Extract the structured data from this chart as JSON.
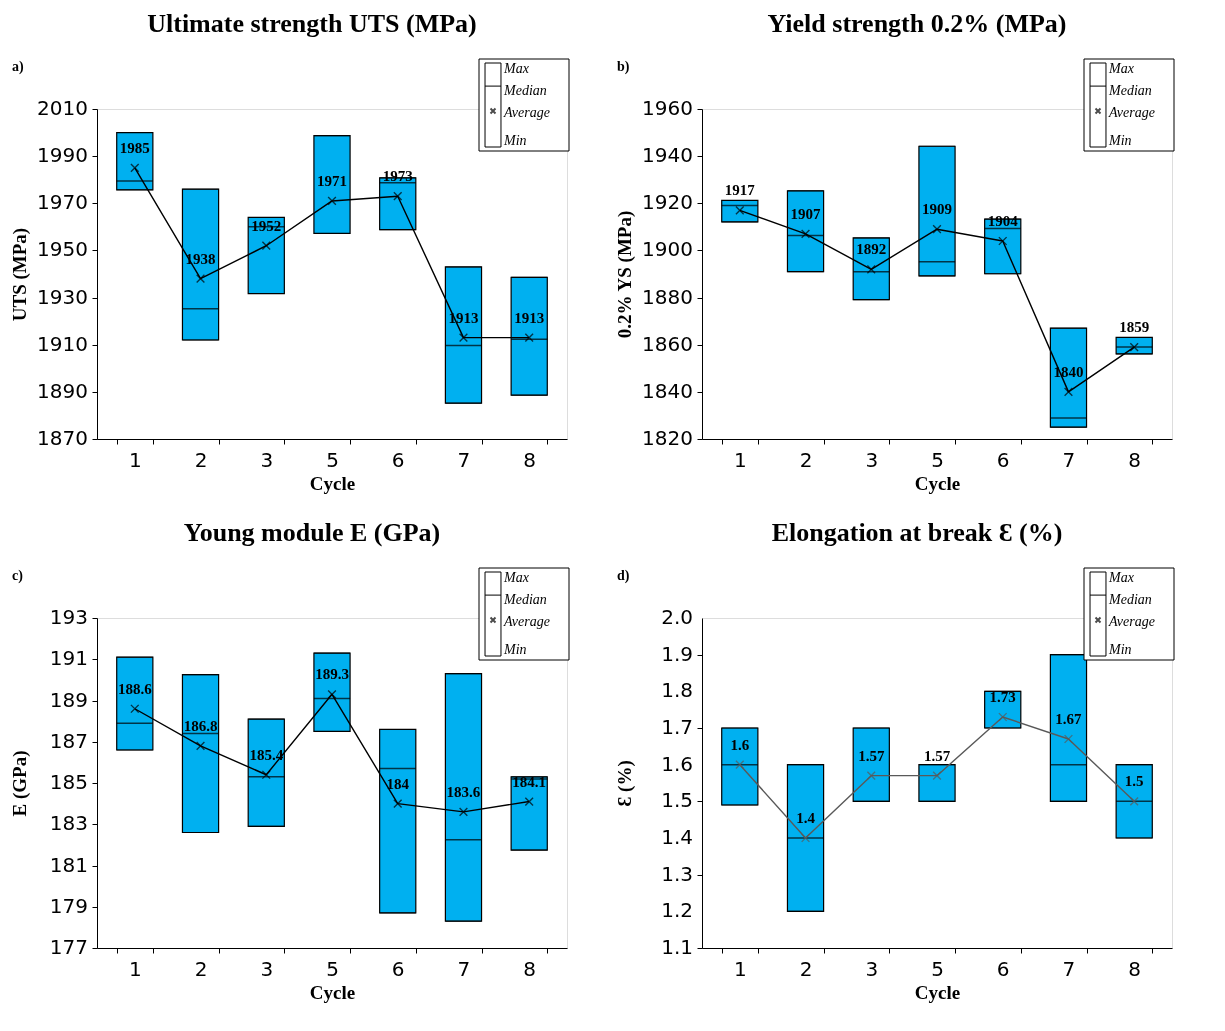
{
  "chart_data": [
    {
      "type": "box",
      "title": "Ultimate strength UTS (MPa)",
      "xlabel": "Cycle",
      "ylabel": "UTS (MPa)",
      "categories": [
        "1",
        "2",
        "3",
        "5",
        "6",
        "7",
        "8"
      ],
      "color": "#00b0f0",
      "annotations": [
        "a)",
        "Max",
        "Median",
        "Average",
        "Min"
      ],
      "boxes": [
        {
          "low": 1975.7,
          "q1": 1975.7,
          "median": 1979.5,
          "q3": 2000,
          "high": 2000
        },
        {
          "low": 1912,
          "q1": 1912,
          "median": 1925.3,
          "q3": 1976,
          "high": 1976
        },
        {
          "low": 1931.7,
          "q1": 1931.7,
          "median": 1960,
          "q3": 1964,
          "high": 1964
        },
        {
          "low": 1957.2,
          "q1": 1957.2,
          "median": null,
          "q3": 1998.7,
          "high": 1998.7
        },
        {
          "low": 1958.8,
          "q1": 1958.8,
          "median": 1978.7,
          "q3": 1980.8,
          "high": 1980.8
        },
        {
          "low": 1885.2,
          "q1": 1885.2,
          "median": 1909.7,
          "q3": 1943,
          "high": 1943
        },
        {
          "low": 1888.6,
          "q1": 1888.6,
          "median": 1912.3,
          "q3": 1938.6,
          "high": 1938.6
        }
      ],
      "series": [
        {
          "type": "line",
          "color": "#000000",
          "values": [
            1985,
            1938,
            1952,
            1971,
            1973,
            1913,
            1913
          ]
        }
      ],
      "marker": "cross",
      "data_labels": true,
      "ylim": [
        1870,
        2010
      ],
      "yticks": [
        1870,
        1890,
        1910,
        1930,
        1950,
        1970,
        1990,
        2010
      ],
      "grid": false
    },
    {
      "type": "box",
      "title": "Yield strength 0.2% (MPa)",
      "xlabel": "Cycle",
      "ylabel": "0.2% YS (MPa)",
      "categories": [
        "1",
        "2",
        "3",
        "5",
        "6",
        "7",
        "8"
      ],
      "color": "#00b0f0",
      "annotations": [
        "b)",
        "Max",
        "Median",
        "Average",
        "Min"
      ],
      "boxes": [
        {
          "low": 1912.1,
          "q1": 1912.1,
          "median": 1919.1,
          "q3": 1921.2,
          "high": 1921.2
        },
        {
          "low": 1891,
          "q1": 1891,
          "median": 1906.3,
          "q3": 1925.3,
          "high": 1925.3
        },
        {
          "low": 1879.1,
          "q1": 1879.1,
          "median": 1891,
          "q3": 1905.3,
          "high": 1905.3
        },
        {
          "low": 1889.2,
          "q1": 1889.2,
          "median": 1895.2,
          "q3": 1944.2,
          "high": 1944.2
        },
        {
          "low": 1890.1,
          "q1": 1890.1,
          "median": 1909.3,
          "q3": 1913.3,
          "high": 1913.3
        },
        {
          "low": 1825,
          "q1": 1825,
          "median": 1828.9,
          "q3": 1867,
          "high": 1867
        },
        {
          "low": 1856.1,
          "q1": 1856.1,
          "median": 1859,
          "q3": 1863.1,
          "high": 1863.1
        }
      ],
      "series": [
        {
          "type": "line",
          "color": "#000000",
          "values": [
            1917,
            1907,
            1892,
            1909,
            1904,
            1840,
            1859
          ]
        }
      ],
      "marker": "cross",
      "data_labels": true,
      "ylim": [
        1820,
        1960
      ],
      "yticks": [
        1820,
        1840,
        1860,
        1880,
        1900,
        1920,
        1940,
        1960
      ],
      "grid": false
    },
    {
      "type": "box",
      "title": "Young module E (GPa)",
      "xlabel": "Cycle",
      "ylabel": "E (GPa)",
      "categories": [
        "1",
        "2",
        "3",
        "5",
        "6",
        "7",
        "8"
      ],
      "color": "#00b0f0",
      "annotations": [
        "c)",
        "Max",
        "Median",
        "Average",
        "Min"
      ],
      "boxes": [
        {
          "low": 186.6,
          "q1": 186.6,
          "median": 187.9,
          "q3": 191.1,
          "high": 191.1
        },
        {
          "low": 182.6,
          "q1": 182.6,
          "median": 187.4,
          "q3": 190.25,
          "high": 190.25
        },
        {
          "low": 182.9,
          "q1": 182.9,
          "median": 185.3,
          "q3": 188.1,
          "high": 188.1
        },
        {
          "low": 187.5,
          "q1": 187.5,
          "median": 189.1,
          "q3": 191.3,
          "high": 191.3
        },
        {
          "low": 178.7,
          "q1": 178.7,
          "median": 185.7,
          "q3": 187.6,
          "high": 187.6
        },
        {
          "low": 178.3,
          "q1": 178.3,
          "median": 182.25,
          "q3": 190.3,
          "high": 190.3
        },
        {
          "low": 181.75,
          "q1": 181.75,
          "median": 185.2,
          "q3": 185.3,
          "high": 185.3
        }
      ],
      "series": [
        {
          "type": "line",
          "color": "#000000",
          "values": [
            188.6,
            186.8,
            185.4,
            189.3,
            184,
            183.6,
            184.1
          ]
        }
      ],
      "marker": "cross",
      "data_labels": true,
      "ylim": [
        177,
        193
      ],
      "yticks": [
        177,
        179,
        181,
        183,
        185,
        187,
        189,
        191,
        193
      ],
      "grid": false
    },
    {
      "type": "box",
      "title": "Elongation at break Ɛ (%)",
      "xlabel": "Cycle",
      "ylabel": "Ɛ (%)",
      "categories": [
        "1",
        "2",
        "3",
        "5",
        "6",
        "7",
        "8"
      ],
      "color": "#00b0f0",
      "annotations": [
        "d)",
        "Max",
        "Median",
        "Average",
        "Min"
      ],
      "boxes": [
        {
          "low": 1.49,
          "q1": 1.49,
          "median": 1.6,
          "q3": 1.7,
          "high": 1.7
        },
        {
          "low": 1.2,
          "q1": 1.2,
          "median": 1.4,
          "q3": 1.6,
          "high": 1.6
        },
        {
          "low": 1.5,
          "q1": 1.5,
          "median": null,
          "q3": 1.7,
          "high": 1.7
        },
        {
          "low": 1.5,
          "q1": 1.5,
          "median": null,
          "q3": 1.6,
          "high": 1.6
        },
        {
          "low": 1.7,
          "q1": 1.7,
          "median": null,
          "q3": 1.8,
          "high": 1.8
        },
        {
          "low": 1.5,
          "q1": 1.5,
          "median": 1.6,
          "q3": 1.9,
          "high": 1.9
        },
        {
          "low": 1.4,
          "q1": 1.4,
          "median": 1.5,
          "q3": 1.6,
          "high": 1.6
        }
      ],
      "series": [
        {
          "type": "line",
          "color": "#595959",
          "values": [
            1.6,
            1.4,
            1.57,
            1.57,
            1.73,
            1.67,
            1.5
          ]
        }
      ],
      "marker": "cross",
      "data_labels": true,
      "ylim": [
        1.1,
        2.0
      ],
      "yticks": [
        1.1,
        1.2,
        1.3,
        1.4,
        1.5,
        1.6,
        1.7,
        1.8,
        1.9,
        {
          "value": 2.0,
          "label": "2.0"
        }
      ],
      "grid": false
    }
  ]
}
